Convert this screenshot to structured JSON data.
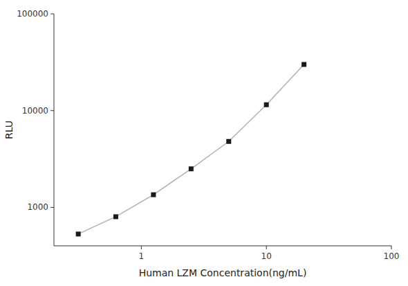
{
  "chart_data": {
    "type": "line",
    "x": [
      0.313,
      0.625,
      1.25,
      2.5,
      5.0,
      10.0,
      20.0
    ],
    "values": [
      530,
      800,
      1350,
      2500,
      4800,
      11500,
      30000
    ],
    "xlabel": "Human LZM Concentration(ng/mL)",
    "ylabel": "RLU",
    "xlim": [
      0.2,
      100
    ],
    "ylim": [
      400,
      100000
    ],
    "xticks": [
      1,
      10,
      100
    ],
    "yticks": [
      1000,
      10000,
      100000
    ],
    "log": true,
    "grid": false,
    "color": "#b0b0b0",
    "colors": [
      "#1a1a1a",
      "#1a1a1a",
      "#1a1a1a",
      "#1a1a1a",
      "#1a1a1a",
      "#1a1a1a",
      "#1a1a1a"
    ],
    "marker": "square"
  }
}
